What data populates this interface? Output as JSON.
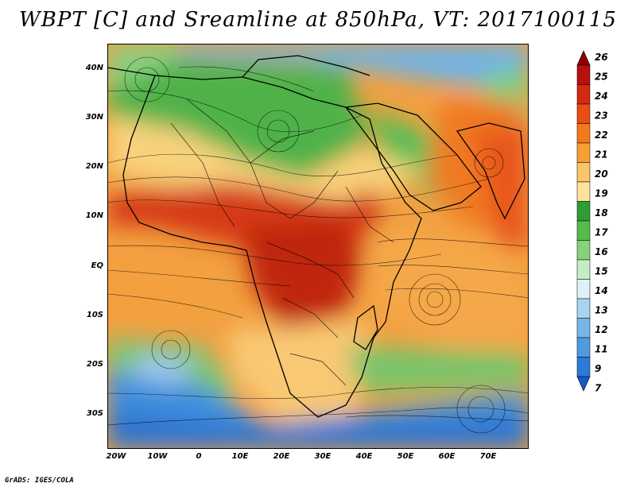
{
  "title": "WBPT [C] and Sreamline at 850hPa, VT: 2017100115",
  "footer": "GrADS: IGES/COLA",
  "axes": {
    "lat_labels": [
      "40N",
      "30N",
      "20N",
      "10N",
      "EQ",
      "10S",
      "20S",
      "30S"
    ],
    "lon_labels": [
      "20W",
      "10W",
      "0",
      "10E",
      "20E",
      "30E",
      "40E",
      "50E",
      "60E",
      "70E"
    ]
  },
  "colorbar": {
    "labels": [
      "26",
      "25",
      "24",
      "23",
      "22",
      "21",
      "20",
      "19",
      "18",
      "17",
      "16",
      "15",
      "14",
      "13",
      "12",
      "11",
      "9",
      "7"
    ],
    "colors": [
      "#8e0000",
      "#b80f0f",
      "#d42a12",
      "#e84e13",
      "#f5791a",
      "#f9a033",
      "#fbc46a",
      "#fde39a",
      "#2e9e34",
      "#55bb4d",
      "#87d17a",
      "#c6ecc3",
      "#ddf2f8",
      "#a7d4ef",
      "#79b6e8",
      "#4f9be0",
      "#2d7bd8",
      "#1759cc"
    ]
  }
}
